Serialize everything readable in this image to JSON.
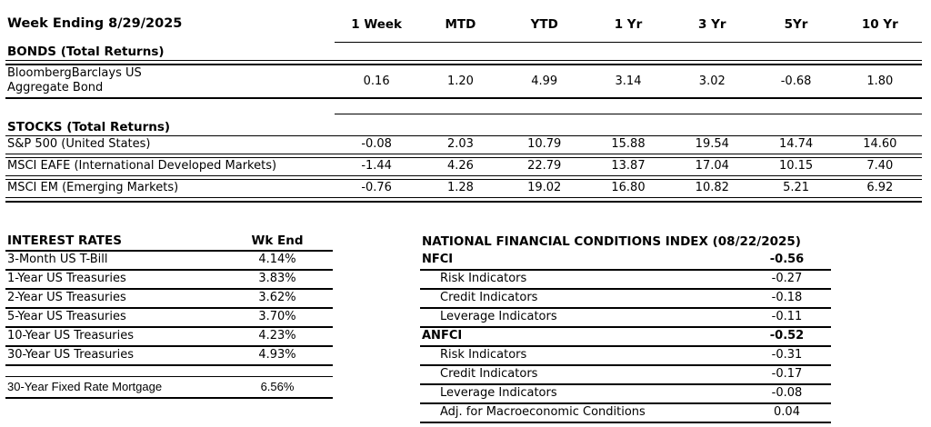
{
  "performance_table": {
    "title": "Week Ending 8/29/2025",
    "columns": [
      "1 Week",
      "MTD",
      "YTD",
      "1 Yr",
      "3 Yr",
      "5Yr",
      "10 Yr"
    ],
    "bonds": {
      "heading": "BONDS (Total Returns)",
      "rows": [
        {
          "label": "BloombergBarclays US\nAggregate Bond",
          "values": [
            "0.16",
            "1.20",
            "4.99",
            "3.14",
            "3.02",
            "-0.68",
            "1.80"
          ]
        }
      ]
    },
    "stocks": {
      "heading": "STOCKS (Total Returns)",
      "rows": [
        {
          "label": "S&P 500 (United States)",
          "values": [
            "-0.08",
            "2.03",
            "10.79",
            "15.88",
            "19.54",
            "14.74",
            "14.60"
          ]
        },
        {
          "label": "MSCI EAFE (International Developed Markets)",
          "values": [
            "-1.44",
            "4.26",
            "22.79",
            "13.87",
            "17.04",
            "10.15",
            "7.40"
          ]
        },
        {
          "label": "MSCI EM (Emerging Markets)",
          "values": [
            "-0.76",
            "1.28",
            "19.02",
            "16.80",
            "10.82",
            "5.21",
            "6.92"
          ]
        }
      ]
    }
  },
  "interest_rates": {
    "heading": "INTEREST RATES",
    "value_header": "Wk End",
    "rows": [
      {
        "label": "3-Month US T-Bill",
        "value": "4.14%"
      },
      {
        "label": "1-Year US Treasuries",
        "value": "3.83%"
      },
      {
        "label": "2-Year US Treasuries",
        "value": "3.62%"
      },
      {
        "label": "5-Year US Treasuries",
        "value": "3.70%"
      },
      {
        "label": "10-Year US Treasuries",
        "value": "4.23%"
      },
      {
        "label": "30-Year US Treasuries",
        "value": "4.93%"
      }
    ],
    "mortgage": {
      "label": "30-Year Fixed Rate Mortgage",
      "value": "6.56%"
    }
  },
  "nfci": {
    "heading": "NATIONAL FINANCIAL CONDITIONS INDEX (08/22/2025)",
    "rows": [
      {
        "label": "NFCI",
        "value": "-0.56",
        "bold": true,
        "indent": false
      },
      {
        "label": "Risk Indicators",
        "value": "-0.27",
        "bold": false,
        "indent": true
      },
      {
        "label": "Credit Indicators",
        "value": "-0.18",
        "bold": false,
        "indent": true
      },
      {
        "label": "Leverage Indicators",
        "value": "-0.11",
        "bold": false,
        "indent": true
      },
      {
        "label": "ANFCI",
        "value": "-0.52",
        "bold": true,
        "indent": false
      },
      {
        "label": "Risk Indicators",
        "value": "-0.31",
        "bold": false,
        "indent": true
      },
      {
        "label": "Credit Indicators",
        "value": "-0.17",
        "bold": false,
        "indent": true
      },
      {
        "label": "Leverage Indicators",
        "value": "-0.08",
        "bold": false,
        "indent": true
      },
      {
        "label": "Adj. for Macroeconomic Conditions",
        "value": "0.04",
        "bold": false,
        "indent": true
      }
    ]
  }
}
